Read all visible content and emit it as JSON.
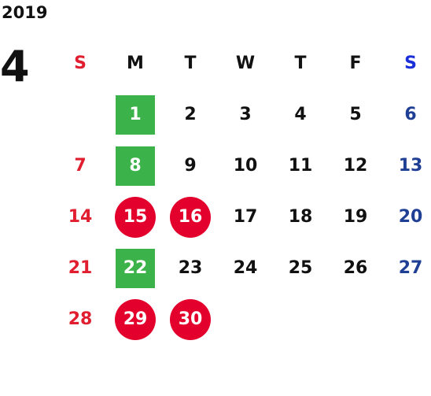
{
  "calendar": {
    "year": "2019",
    "month": "4",
    "weekdays": [
      "S",
      "M",
      "T",
      "W",
      "T",
      "F",
      "S"
    ],
    "weeks": [
      [
        "",
        "1",
        "2",
        "3",
        "4",
        "5",
        "6"
      ],
      [
        "7",
        "8",
        "9",
        "10",
        "11",
        "12",
        "13"
      ],
      [
        "14",
        "15",
        "16",
        "17",
        "18",
        "19",
        "20"
      ],
      [
        "21",
        "22",
        "23",
        "24",
        "25",
        "26",
        "27"
      ],
      [
        "28",
        "29",
        "30",
        "",
        "",
        "",
        ""
      ]
    ],
    "highlighted_square_days": [
      "1",
      "8",
      "22"
    ],
    "highlighted_circle_days": [
      "15",
      "16",
      "29",
      "30"
    ],
    "colors": {
      "sunday": "#e01e2f",
      "saturday": "#1f3f94",
      "square_highlight": "#3bb24a",
      "circle_highlight": "#e3002d"
    }
  }
}
